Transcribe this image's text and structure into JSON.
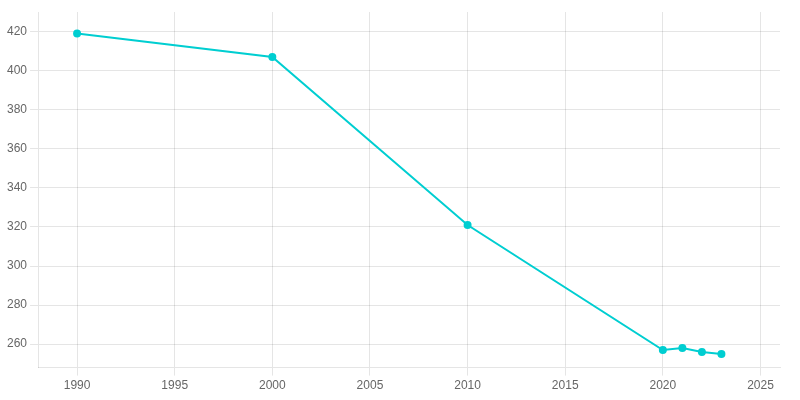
{
  "chart_data": {
    "type": "line",
    "x": [
      1990,
      2000,
      2010,
      2020,
      2021,
      2022,
      2023
    ],
    "values": [
      419,
      407,
      321,
      257,
      258,
      256,
      255
    ],
    "color": "#00CED1",
    "marker": "circle",
    "xlim": [
      1988,
      2026
    ],
    "xticks": [
      1990,
      1995,
      2000,
      2005,
      2010,
      2015,
      2020,
      2025
    ],
    "ylim": [
      248,
      430
    ],
    "yticks": [
      260,
      280,
      300,
      320,
      340,
      360,
      380,
      400,
      420
    ],
    "grid": true
  }
}
